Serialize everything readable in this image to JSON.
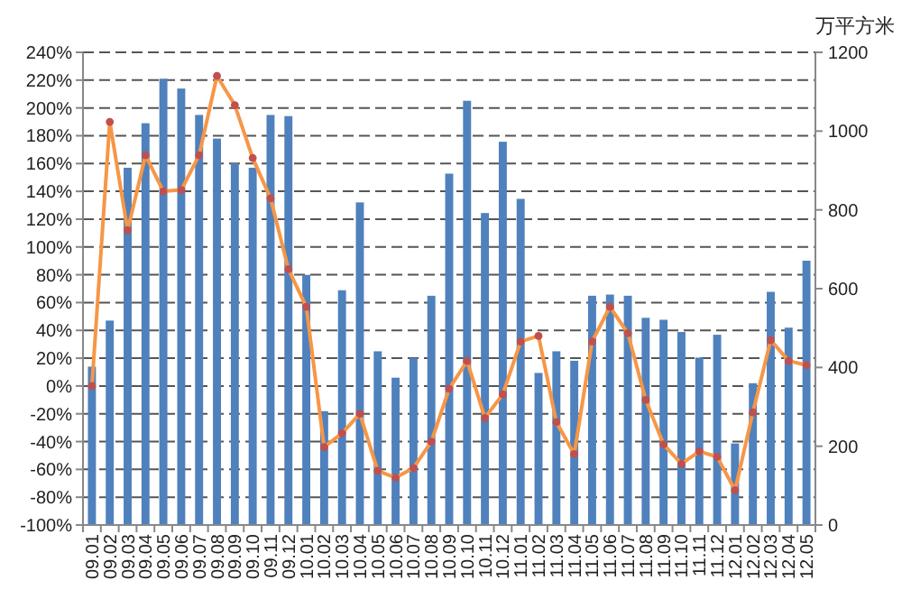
{
  "chart_data": {
    "type": "bar",
    "categories": [
      "09.01",
      "09.02",
      "09.03",
      "09.04",
      "09.05",
      "09.06",
      "09.07",
      "09.08",
      "09.09",
      "09.10",
      "09.11",
      "09.12",
      "10.01",
      "10.02",
      "10.03",
      "10.04",
      "10.05",
      "10.06",
      "10.07",
      "10.08",
      "10.09",
      "10.10",
      "10.11",
      "10.12",
      "11.01",
      "11.02",
      "11.03",
      "11.04",
      "11.05",
      "11.06",
      "11.07",
      "11.08",
      "11.09",
      "11.10",
      "11.11",
      "11.12",
      "12.01",
      "12.02",
      "12.03",
      "12.04",
      "12.05"
    ],
    "series": [
      {
        "axis": "y2",
        "color": "#4f81bd",
        "values": [
          402,
          519,
          907,
          1020,
          1133,
          1108,
          1041,
          981,
          918,
          907,
          1041,
          1038,
          635,
          289,
          596,
          819,
          441,
          374,
          424,
          582,
          892,
          1077,
          792,
          973,
          828,
          386,
          441,
          417,
          582,
          585,
          582,
          526,
          521,
          490,
          425,
          483,
          207,
          360,
          592,
          501,
          671
        ]
      },
      {
        "type": "line",
        "color": "#f79646",
        "values": [
          0,
          190,
          112,
          166,
          140,
          141,
          166,
          223,
          202,
          164,
          135,
          84,
          57,
          -44,
          -34,
          -20,
          -61,
          -66,
          -59,
          -40,
          -2,
          18,
          -23,
          -6,
          32,
          36,
          -26,
          -49,
          32,
          57,
          38,
          -10,
          -42,
          -56,
          -47,
          -51,
          -75,
          -19,
          33,
          18,
          15
        ]
      }
    ],
    "marker": "circle",
    "ylim": [
      -100,
      240
    ],
    "yticks": [
      {
        "value": -100,
        "label": "-100%"
      },
      {
        "value": -80,
        "label": "-80%"
      },
      {
        "value": -60,
        "label": "-60%"
      },
      {
        "value": -40,
        "label": "-40%"
      },
      {
        "value": -20,
        "label": "-20%"
      },
      {
        "value": 0,
        "label": "0%"
      },
      {
        "value": 20,
        "label": "20%"
      },
      {
        "value": 40,
        "label": "40%"
      },
      {
        "value": 60,
        "label": "60%"
      },
      {
        "value": 80,
        "label": "80%"
      },
      {
        "value": 100,
        "label": "100%"
      },
      {
        "value": 120,
        "label": "120%"
      },
      {
        "value": 140,
        "label": "140%"
      },
      {
        "value": 160,
        "label": "160%"
      },
      {
        "value": 180,
        "label": "180%"
      },
      {
        "value": 200,
        "label": "200%"
      },
      {
        "value": 220,
        "label": "220%"
      },
      {
        "value": 240,
        "label": "240%"
      }
    ],
    "y2lim": [
      0,
      1200
    ],
    "y2ticks": [
      0,
      200,
      400,
      600,
      800,
      1000,
      1200
    ],
    "y2label": "万平方米",
    "grid": "y"
  }
}
